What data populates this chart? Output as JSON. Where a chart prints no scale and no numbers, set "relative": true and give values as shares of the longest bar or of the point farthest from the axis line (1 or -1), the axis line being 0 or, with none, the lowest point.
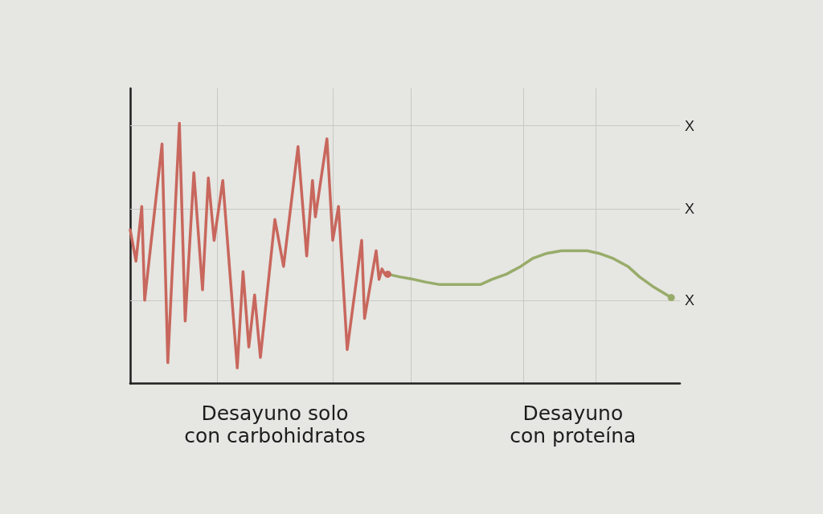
{
  "chart_data": {
    "type": "line",
    "relative": true,
    "categories": [
      null,
      null,
      null,
      null,
      null,
      null,
      null,
      null,
      null,
      null,
      null,
      null,
      null,
      null,
      null,
      null,
      null,
      null,
      null,
      null,
      null,
      null,
      null,
      null,
      null,
      null,
      null,
      null,
      null,
      null,
      null,
      null,
      null,
      null,
      null,
      null,
      null,
      null,
      null,
      null,
      null,
      null,
      null,
      null,
      null,
      null,
      null,
      null,
      null,
      null,
      "Desayuno solo con carbohidratos",
      null,
      null,
      null,
      null,
      null,
      null,
      null,
      null,
      null,
      null,
      null,
      null,
      null,
      null,
      null,
      null,
      null,
      null,
      null,
      null,
      null,
      null,
      null,
      null,
      null,
      null,
      null,
      null,
      null,
      null,
      null,
      null,
      null,
      null,
      null,
      null,
      null,
      null,
      null,
      null,
      null,
      null,
      null,
      null,
      null,
      null,
      null,
      null,
      null,
      null,
      null,
      null,
      null,
      null,
      null,
      null,
      null,
      null,
      null,
      null,
      null,
      null,
      null,
      null,
      null,
      null,
      null,
      null,
      null,
      null,
      null,
      null,
      null,
      null,
      null,
      null,
      null,
      null,
      null,
      null,
      null,
      null,
      null,
      null,
      null,
      null,
      null,
      null,
      null,
      null,
      null,
      null,
      null,
      null,
      null,
      null,
      null,
      null,
      null,
      null,
      null,
      null,
      "Desayuno con proteína",
      null,
      null,
      null,
      null,
      null,
      null,
      null,
      null,
      null,
      null,
      null,
      null,
      null,
      null,
      null,
      null,
      null,
      null,
      null,
      null,
      null,
      null,
      null,
      null,
      null,
      null,
      null,
      null,
      null,
      null,
      null,
      null,
      null,
      null,
      null,
      null,
      null
    ],
    "ref_lines": [
      {
        "axis": "y",
        "value": 0.32,
        "label": "X",
        "color": "#c8c8c4"
      },
      {
        "axis": "y",
        "value": 0.67,
        "label": "X",
        "color": "#c8c8c4"
      },
      {
        "axis": "y",
        "value": 0.99,
        "label": "X",
        "color": "#c8c8c4"
      }
    ],
    "grid": "x",
    "tick_labels": "x",
    "line_style": "solid",
    "series": [
      {
        "color": "#c8675d",
        "values": [
          0.59,
          null,
          0.47,
          null,
          0.68,
          0.32,
          null,
          null,
          null,
          null,
          null,
          0.92,
          null,
          0.08,
          null,
          null,
          null,
          1,
          null,
          0.24,
          null,
          null,
          0.81,
          null,
          null,
          0.36,
          null,
          0.79,
          null,
          0.55,
          null,
          null,
          0.78,
          null,
          null,
          null,
          null,
          0.06,
          null,
          0.43,
          null,
          0.14,
          null,
          0.34,
          null,
          0.1,
          null,
          null,
          null,
          null,
          0.63,
          null,
          null,
          0.45,
          null,
          null,
          null,
          null,
          0.91,
          null,
          null,
          0.49,
          null,
          0.78,
          0.64,
          null,
          null,
          null,
          0.94,
          null,
          0.55,
          null,
          0.68,
          null,
          null,
          0.13,
          null,
          null,
          null,
          null,
          0.55,
          0.25,
          null,
          null,
          null,
          0.51,
          0.4,
          0.44,
          0.42,
          0.42,
          null,
          null,
          null,
          null,
          null,
          null,
          null,
          null,
          null,
          null,
          null,
          null,
          null,
          null,
          null,
          null,
          null,
          null,
          null,
          null,
          null,
          null,
          null,
          null,
          null,
          null,
          null,
          null,
          null,
          null,
          null,
          null,
          null,
          null,
          null,
          null,
          null,
          null,
          null,
          null,
          null,
          null,
          null,
          null,
          null,
          null,
          null,
          null,
          null,
          null,
          null,
          null,
          null,
          null,
          null,
          null,
          null,
          null,
          null,
          null,
          null,
          null,
          null,
          null,
          null,
          null,
          null,
          null,
          null,
          null,
          null,
          null,
          null,
          null,
          null,
          null,
          null,
          null,
          null,
          null,
          null,
          null,
          null,
          null,
          null,
          null,
          null,
          null,
          null,
          null,
          null,
          null,
          null,
          null,
          null,
          null,
          null,
          null,
          null,
          null,
          null
        ]
      },
      {
        "color": "#98ac6a",
        "values": [
          null,
          null,
          null,
          null,
          null,
          null,
          null,
          null,
          null,
          null,
          null,
          null,
          null,
          null,
          null,
          null,
          null,
          null,
          null,
          null,
          null,
          null,
          null,
          null,
          null,
          null,
          null,
          null,
          null,
          null,
          null,
          null,
          null,
          null,
          null,
          null,
          null,
          null,
          null,
          null,
          null,
          null,
          null,
          null,
          null,
          null,
          null,
          null,
          null,
          null,
          null,
          null,
          null,
          null,
          null,
          null,
          null,
          null,
          null,
          null,
          null,
          null,
          null,
          null,
          null,
          null,
          null,
          null,
          null,
          null,
          null,
          null,
          null,
          null,
          null,
          null,
          null,
          null,
          null,
          null,
          null,
          null,
          null,
          null,
          null,
          null,
          null,
          null,
          null,
          0.42,
          null,
          null,
          null,
          0.41,
          null,
          null,
          null,
          null,
          0.4,
          null,
          null,
          null,
          0.39,
          null,
          null,
          null,
          null,
          0.38,
          null,
          null,
          null,
          0.38,
          null,
          null,
          null,
          null,
          0.38,
          null,
          null,
          null,
          null,
          0.38,
          null,
          null,
          null,
          0.4,
          null,
          null,
          null,
          null,
          0.42,
          null,
          null,
          null,
          null,
          0.45,
          null,
          null,
          null,
          0.48,
          null,
          null,
          null,
          null,
          0.5,
          null,
          null,
          null,
          null,
          0.51,
          null,
          null,
          null,
          0.51,
          null,
          null,
          null,
          null,
          0.51,
          null,
          null,
          null,
          0.5,
          null,
          null,
          null,
          null,
          0.48,
          null,
          null,
          null,
          null,
          0.45,
          null,
          null,
          null,
          0.41,
          null,
          null,
          null,
          null,
          0.37,
          null,
          null,
          null,
          null,
          null,
          0.33,
          null,
          null,
          null
        ]
      },
      {
        "type": "scatter",
        "marker": "circle",
        "color": "#c8675d",
        "values": [
          null,
          null,
          null,
          null,
          null,
          null,
          null,
          null,
          null,
          null,
          null,
          null,
          null,
          null,
          null,
          null,
          null,
          null,
          null,
          null,
          null,
          null,
          null,
          null,
          null,
          null,
          null,
          null,
          null,
          null,
          null,
          null,
          null,
          null,
          null,
          null,
          null,
          null,
          null,
          null,
          null,
          null,
          null,
          null,
          null,
          null,
          null,
          null,
          null,
          null,
          null,
          null,
          null,
          null,
          null,
          null,
          null,
          null,
          null,
          null,
          null,
          null,
          null,
          null,
          null,
          null,
          null,
          null,
          null,
          null,
          null,
          null,
          null,
          null,
          null,
          null,
          null,
          null,
          null,
          null,
          null,
          null,
          null,
          null,
          null,
          null,
          null,
          null,
          null,
          0.42,
          null,
          null,
          null,
          null,
          null,
          null,
          null,
          null,
          null,
          null,
          null,
          null,
          null,
          null,
          null,
          null,
          null,
          null,
          null,
          null,
          null,
          null,
          null,
          null,
          null,
          null,
          null,
          null,
          null,
          null,
          null,
          null,
          null,
          null,
          null,
          null,
          null,
          null,
          null,
          null,
          null,
          null,
          null,
          null,
          null,
          null,
          null,
          null,
          null,
          null,
          null,
          null,
          null,
          null,
          null,
          null,
          null,
          null,
          null,
          null,
          null,
          null,
          null,
          null,
          null,
          null,
          null,
          null,
          null,
          null,
          null,
          null,
          null,
          null,
          null,
          null,
          null,
          null,
          null,
          null,
          null,
          null,
          null,
          null,
          null,
          null,
          null,
          null,
          null,
          null,
          null,
          null,
          null,
          null,
          null,
          null,
          null,
          null,
          null,
          null,
          null
        ]
      },
      {
        "type": "scatter",
        "marker": "circle",
        "color": "#98ac6a",
        "values": [
          null,
          null,
          null,
          null,
          null,
          null,
          null,
          null,
          null,
          null,
          null,
          null,
          null,
          null,
          null,
          null,
          null,
          null,
          null,
          null,
          null,
          null,
          null,
          null,
          null,
          null,
          null,
          null,
          null,
          null,
          null,
          null,
          null,
          null,
          null,
          null,
          null,
          null,
          null,
          null,
          null,
          null,
          null,
          null,
          null,
          null,
          null,
          null,
          null,
          null,
          null,
          null,
          null,
          null,
          null,
          null,
          null,
          null,
          null,
          null,
          null,
          null,
          null,
          null,
          null,
          null,
          null,
          null,
          null,
          null,
          null,
          null,
          null,
          null,
          null,
          null,
          null,
          null,
          null,
          null,
          null,
          null,
          null,
          null,
          null,
          null,
          null,
          null,
          null,
          null,
          null,
          null,
          null,
          null,
          null,
          null,
          null,
          null,
          null,
          null,
          null,
          null,
          null,
          null,
          null,
          null,
          null,
          null,
          null,
          null,
          null,
          null,
          null,
          null,
          null,
          null,
          null,
          null,
          null,
          null,
          null,
          null,
          null,
          null,
          null,
          null,
          null,
          null,
          null,
          null,
          null,
          null,
          null,
          null,
          null,
          null,
          null,
          null,
          null,
          null,
          null,
          null,
          null,
          null,
          null,
          null,
          null,
          null,
          null,
          null,
          null,
          null,
          null,
          null,
          null,
          null,
          null,
          null,
          null,
          null,
          null,
          null,
          null,
          null,
          null,
          null,
          null,
          null,
          null,
          null,
          null,
          null,
          null,
          null,
          null,
          null,
          null,
          null,
          null,
          null,
          null,
          null,
          null,
          null,
          null,
          null,
          null,
          0.33,
          null,
          null,
          null
        ]
      }
    ]
  }
}
